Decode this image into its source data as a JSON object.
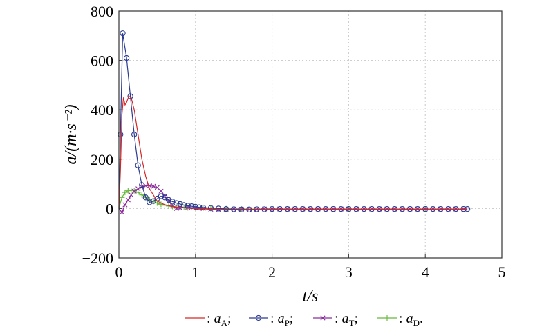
{
  "chart_data": {
    "type": "line",
    "xlabel": "t/s",
    "ylabel": "a/(m·s⁻²)",
    "xlim": [
      0,
      5
    ],
    "ylim": [
      -200,
      800
    ],
    "xticks": [
      "0",
      "1",
      "2",
      "3",
      "4",
      "5"
    ],
    "yticks": [
      "800",
      "600",
      "400",
      "200",
      "0",
      "−200"
    ],
    "grid": true,
    "legend_position": "bottom",
    "series": [
      {
        "name": "a_A",
        "legend_label": ": a",
        "legend_sub": "A",
        "legend_end": ";",
        "color": "#d62728",
        "marker": "none",
        "x": [
          0,
          0.02,
          0.04,
          0.06,
          0.08,
          0.1,
          0.13,
          0.16,
          0.2,
          0.25,
          0.3,
          0.35,
          0.4,
          0.5,
          0.6,
          0.7,
          0.8,
          1.0,
          1.2,
          1.5,
          2.0,
          3.0,
          4.0,
          4.55
        ],
        "y": [
          0,
          150,
          380,
          450,
          420,
          430,
          455,
          450,
          400,
          300,
          200,
          130,
          80,
          30,
          15,
          8,
          4,
          0,
          -3,
          -5,
          -3,
          -2,
          -2,
          -2
        ]
      },
      {
        "name": "a_P",
        "legend_label": ": a",
        "legend_sub": "P",
        "legend_end": ";",
        "color": "#2b3a8f",
        "marker": "circle",
        "x": [
          0,
          0.02,
          0.05,
          0.1,
          0.15,
          0.2,
          0.25,
          0.3,
          0.35,
          0.4,
          0.45,
          0.5,
          0.55,
          0.6,
          0.65,
          0.7,
          0.75,
          0.8,
          0.85,
          0.9,
          0.95,
          1.0,
          1.05,
          1.1,
          1.2,
          1.3,
          1.4,
          1.5,
          1.6,
          1.7,
          1.8,
          1.9,
          2.0,
          2.1,
          2.2,
          2.3,
          2.4,
          2.5,
          2.6,
          2.7,
          2.8,
          2.9,
          3.0,
          3.1,
          3.2,
          3.3,
          3.4,
          3.5,
          3.6,
          3.7,
          3.8,
          3.9,
          4.0,
          4.1,
          4.2,
          4.3,
          4.4,
          4.5,
          4.55
        ],
        "y": [
          0,
          300,
          710,
          610,
          455,
          300,
          175,
          95,
          45,
          25,
          30,
          40,
          50,
          45,
          35,
          28,
          22,
          18,
          14,
          11,
          9,
          7,
          5,
          4,
          2,
          0,
          -2,
          -3,
          -4,
          -4,
          -3,
          -3,
          -2,
          -2,
          -2,
          -2,
          -2,
          -2,
          -2,
          -2,
          -2,
          -2,
          -2,
          -2,
          -2,
          -2,
          -2,
          -2,
          -2,
          -2,
          -2,
          -2,
          -2,
          -2,
          -2,
          -2,
          -2,
          -2,
          -2
        ]
      },
      {
        "name": "a_T",
        "legend_label": ": a",
        "legend_sub": "T",
        "legend_end": ";",
        "color": "#8b2f9c",
        "marker": "x",
        "x": [
          0,
          0.04,
          0.08,
          0.12,
          0.16,
          0.2,
          0.25,
          0.3,
          0.35,
          0.4,
          0.45,
          0.5,
          0.55,
          0.6,
          0.65,
          0.7,
          0.75,
          0.8,
          0.9,
          1.0,
          1.1,
          1.2,
          1.3,
          1.4,
          1.5,
          1.6,
          1.7,
          1.8,
          1.9,
          2.0,
          2.1,
          2.2,
          2.3,
          2.4,
          2.5,
          2.6,
          2.7,
          2.8,
          2.9,
          3.0,
          3.1,
          3.2,
          3.3,
          3.4,
          3.5,
          3.6,
          3.7,
          3.8,
          3.9,
          4.0,
          4.1,
          4.2,
          4.3,
          4.4,
          4.5
        ],
        "y": [
          0,
          -15,
          15,
          35,
          55,
          70,
          80,
          88,
          92,
          92,
          90,
          85,
          70,
          50,
          30,
          10,
          0,
          2,
          5,
          3,
          0,
          -3,
          -5,
          -4,
          -2,
          -3,
          -4,
          -3,
          -2,
          -3,
          -2,
          -2,
          -2,
          -2,
          -2,
          -2,
          -2,
          -2,
          -2,
          -2,
          -2,
          -2,
          -2,
          -2,
          -2,
          -2,
          -2,
          -2,
          -2,
          -2,
          -2,
          -2,
          -2,
          -2,
          -2
        ]
      },
      {
        "name": "a_D",
        "legend_label": ": a",
        "legend_sub": "D",
        "legend_end": ".",
        "color": "#66b83a",
        "marker": "plus",
        "x": [
          0,
          0.04,
          0.08,
          0.12,
          0.16,
          0.2,
          0.25,
          0.3,
          0.35,
          0.4,
          0.45,
          0.5,
          0.55,
          0.6,
          0.65,
          0.7,
          0.75,
          0.8,
          0.85,
          0.9,
          1.0,
          1.1,
          1.2,
          1.4,
          1.6,
          2.0,
          3.0,
          4.0
        ],
        "y": [
          0,
          45,
          65,
          72,
          74,
          72,
          65,
          55,
          45,
          35,
          28,
          22,
          17,
          13,
          10,
          8,
          6,
          5,
          4,
          3,
          2,
          1,
          0,
          -1,
          -2,
          -2,
          -2,
          -2
        ]
      }
    ]
  }
}
